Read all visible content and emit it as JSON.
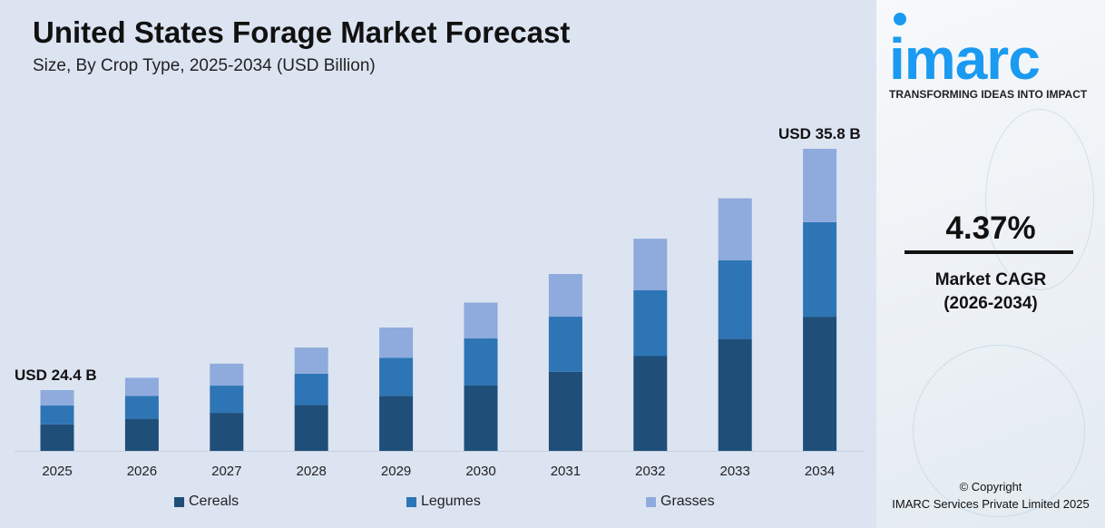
{
  "header": {
    "title": "United States Forage Market Forecast",
    "subtitle": "Size, By Crop Type, 2025-2034 (USD Billion)"
  },
  "chart_data": {
    "type": "bar",
    "stacked": true,
    "title": "United States Forage Market Forecast",
    "subtitle": "Size, By Crop Type, 2025-2034 (USD Billion)",
    "categories": [
      "2025",
      "2026",
      "2027",
      "2028",
      "2029",
      "2030",
      "2031",
      "2032",
      "2033",
      "2034"
    ],
    "series": [
      {
        "name": "Cereals",
        "color": "#1f4e79",
        "values": [
          10.6,
          11.2,
          11.6,
          12.3,
          12.9,
          13.3,
          14.1,
          14.7,
          15.2,
          15.9
        ]
      },
      {
        "name": "Legumes",
        "color": "#2e75b6",
        "values": [
          7.6,
          8.0,
          8.3,
          8.4,
          8.9,
          9.6,
          9.8,
          10.2,
          10.7,
          11.2
        ]
      },
      {
        "name": "Grasses",
        "color": "#8faadc",
        "values": [
          6.2,
          6.3,
          6.7,
          7.0,
          7.1,
          7.3,
          7.6,
          8.0,
          8.4,
          8.7
        ]
      }
    ],
    "totals": [
      24.4,
      25.5,
      26.6,
      27.7,
      28.9,
      30.2,
      31.5,
      32.9,
      34.3,
      35.8
    ],
    "annotations": {
      "first": "USD 24.4 B",
      "last": "USD 35.8 B"
    },
    "legend_position": "bottom",
    "grid": false
  },
  "sidebar": {
    "logo": "imarc",
    "tagline": "TRANSFORMING IDEAS INTO IMPACT",
    "cagr_value": "4.37%",
    "cagr_label": "Market CAGR",
    "cagr_period": "(2026-2034)",
    "copyright": "© Copyright",
    "company": "IMARC Services Private Limited 2025"
  }
}
